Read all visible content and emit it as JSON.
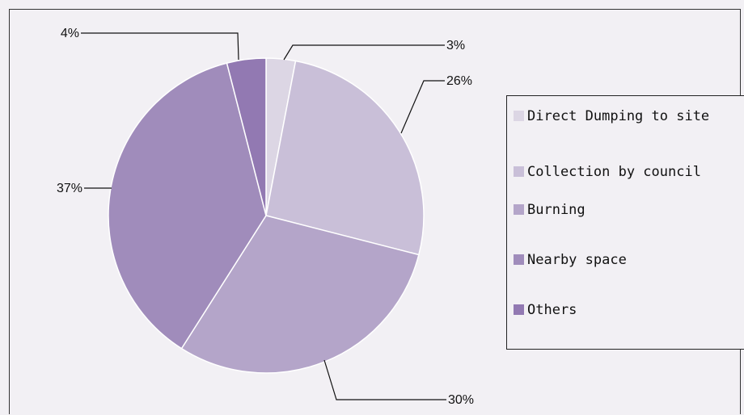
{
  "chart_data": {
    "type": "pie",
    "slices": [
      {
        "name": "Direct Dumping to site",
        "value": 3,
        "label": "3%",
        "color": "#dcd6e4"
      },
      {
        "name": "Collection by council",
        "value": 26,
        "label": "26%",
        "color": "#c9bfd8"
      },
      {
        "name": "Burning",
        "value": 30,
        "label": "30%",
        "color": "#b4a5c9"
      },
      {
        "name": "Nearby space",
        "value": 37,
        "label": "37%",
        "color": "#a08cbb"
      },
      {
        "name": "Others",
        "value": 4,
        "label": "4%",
        "color": "#9279b2"
      }
    ],
    "legend_position": "right",
    "start": "top",
    "direction": "clockwise"
  }
}
